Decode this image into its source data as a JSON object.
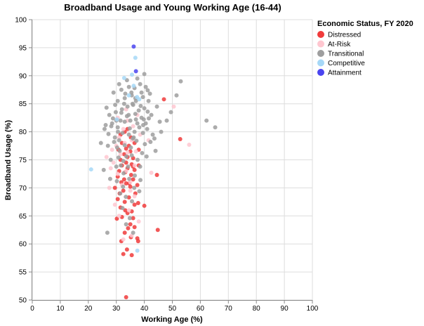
{
  "chart_data": {
    "type": "scatter",
    "title": "Broadband Usage and Young Working Age (16-44)",
    "xlabel": "Working Age (%)",
    "ylabel": "Broadband Usage (%)",
    "xlim": [
      0,
      100
    ],
    "ylim": [
      50,
      100
    ],
    "x_ticks": [
      0,
      10,
      20,
      30,
      40,
      50,
      60,
      70,
      80,
      90,
      100
    ],
    "y_ticks": [
      50,
      55,
      60,
      65,
      70,
      75,
      80,
      85,
      90,
      95,
      100
    ],
    "grid": true,
    "legend": {
      "title": "Economic Status, FY 2020",
      "placement": "right"
    },
    "series": [
      {
        "name": "Distressed",
        "color": "#f03b3b",
        "points": [
          [
            33.5,
            50.5
          ],
          [
            32.5,
            58.2
          ],
          [
            35.5,
            58.0
          ],
          [
            33.8,
            59.0
          ],
          [
            31.8,
            60.5
          ],
          [
            37.5,
            61.0
          ],
          [
            37.8,
            60.5
          ],
          [
            35.2,
            61.2
          ],
          [
            33.0,
            62.0
          ],
          [
            34.2,
            62.8
          ],
          [
            36.5,
            63.0
          ],
          [
            44.8,
            62.5
          ],
          [
            35.0,
            63.5
          ],
          [
            30.2,
            64.5
          ],
          [
            32.0,
            64.8
          ],
          [
            36.0,
            64.6
          ],
          [
            34.0,
            65.5
          ],
          [
            33.2,
            66.0
          ],
          [
            35.5,
            65.8
          ],
          [
            31.5,
            66.5
          ],
          [
            36.5,
            67.0
          ],
          [
            40.0,
            66.8
          ],
          [
            33.0,
            67.5
          ],
          [
            37.8,
            67.3
          ],
          [
            30.5,
            68.0
          ],
          [
            34.5,
            68.3
          ],
          [
            31.2,
            69.0
          ],
          [
            36.8,
            69.0
          ],
          [
            32.5,
            69.5
          ],
          [
            29.5,
            70.0
          ],
          [
            35.0,
            70.2
          ],
          [
            33.5,
            70.8
          ],
          [
            34.6,
            70.8
          ],
          [
            37.5,
            70.5
          ],
          [
            31.8,
            71.0
          ],
          [
            32.8,
            71.5
          ],
          [
            36.0,
            71.5
          ],
          [
            30.5,
            72.0
          ],
          [
            35.3,
            72.3
          ],
          [
            44.5,
            72.3
          ],
          [
            33.2,
            72.8
          ],
          [
            31.0,
            73.0
          ],
          [
            34.0,
            73.5
          ],
          [
            36.5,
            73.2
          ],
          [
            32.0,
            74.0
          ],
          [
            33.5,
            74.5
          ],
          [
            35.5,
            74.2
          ],
          [
            38.0,
            74.0
          ],
          [
            31.5,
            75.0
          ],
          [
            34.0,
            75.5
          ],
          [
            36.0,
            75.3
          ],
          [
            32.8,
            76.0
          ],
          [
            35.0,
            76.5
          ],
          [
            30.8,
            76.8
          ],
          [
            33.5,
            77.0
          ],
          [
            34.5,
            77.5
          ],
          [
            32.0,
            78.0
          ],
          [
            36.5,
            78.0
          ],
          [
            38.0,
            76.8
          ],
          [
            35.2,
            79.0
          ],
          [
            33.0,
            80.0
          ],
          [
            52.8,
            78.7
          ],
          [
            47.0,
            85.8
          ],
          [
            34.0,
            80.5
          ],
          [
            31.5,
            79.5
          ],
          [
            36.0,
            73.8
          ]
        ]
      },
      {
        "name": "At-Risk",
        "color": "#ffc7d0",
        "points": [
          [
            32.5,
            60.8
          ],
          [
            35.5,
            61.5
          ],
          [
            38.0,
            64.0
          ],
          [
            31.0,
            65.0
          ],
          [
            34.5,
            66.0
          ],
          [
            29.5,
            67.0
          ],
          [
            36.5,
            68.5
          ],
          [
            27.5,
            70.0
          ],
          [
            32.0,
            70.5
          ],
          [
            35.0,
            71.0
          ],
          [
            30.5,
            72.5
          ],
          [
            42.5,
            72.7
          ],
          [
            33.5,
            73.0
          ],
          [
            29.0,
            74.5
          ],
          [
            36.5,
            74.0
          ],
          [
            26.5,
            75.5
          ],
          [
            31.5,
            76.0
          ],
          [
            34.0,
            76.3
          ],
          [
            28.5,
            76.8
          ],
          [
            37.0,
            76.5
          ],
          [
            30.0,
            77.5
          ],
          [
            56.0,
            77.7
          ],
          [
            33.0,
            78.0
          ],
          [
            35.5,
            78.5
          ],
          [
            31.0,
            79.0
          ],
          [
            38.5,
            79.5
          ],
          [
            32.5,
            80.5
          ],
          [
            36.0,
            81.0
          ],
          [
            34.0,
            82.0
          ],
          [
            30.5,
            82.5
          ],
          [
            37.5,
            83.0
          ],
          [
            50.5,
            84.5
          ],
          [
            33.5,
            84.0
          ],
          [
            41.5,
            78.5
          ],
          [
            35.0,
            69.5
          ],
          [
            28.0,
            73.5
          ]
        ]
      },
      {
        "name": "Transitional",
        "color": "#9e9e9e",
        "points": [
          [
            26.8,
            62.0
          ],
          [
            33.5,
            63.5
          ],
          [
            25.5,
            73.2
          ],
          [
            28.0,
            75.0
          ],
          [
            30.0,
            73.8
          ],
          [
            32.5,
            74.8
          ],
          [
            35.5,
            75.8
          ],
          [
            38.5,
            73.8
          ],
          [
            24.5,
            78.0
          ],
          [
            27.0,
            77.5
          ],
          [
            29.5,
            79.0
          ],
          [
            31.0,
            78.5
          ],
          [
            34.5,
            79.5
          ],
          [
            36.5,
            80.0
          ],
          [
            39.5,
            79.8
          ],
          [
            41.0,
            80.5
          ],
          [
            43.0,
            79.5
          ],
          [
            25.8,
            80.5
          ],
          [
            28.5,
            81.5
          ],
          [
            30.5,
            80.8
          ],
          [
            33.0,
            81.8
          ],
          [
            35.0,
            82.0
          ],
          [
            37.5,
            81.5
          ],
          [
            39.0,
            82.5
          ],
          [
            40.5,
            81.5
          ],
          [
            42.5,
            83.0
          ],
          [
            27.5,
            83.0
          ],
          [
            29.8,
            83.5
          ],
          [
            32.0,
            84.0
          ],
          [
            34.0,
            84.5
          ],
          [
            36.0,
            84.8
          ],
          [
            38.0,
            83.8
          ],
          [
            40.0,
            84.2
          ],
          [
            44.5,
            84.5
          ],
          [
            49.5,
            83.5
          ],
          [
            26.5,
            84.3
          ],
          [
            30.5,
            85.5
          ],
          [
            33.0,
            86.0
          ],
          [
            35.5,
            86.5
          ],
          [
            37.0,
            85.5
          ],
          [
            39.5,
            86.2
          ],
          [
            41.5,
            85.5
          ],
          [
            51.5,
            86.5
          ],
          [
            29.0,
            87.0
          ],
          [
            31.8,
            87.5
          ],
          [
            34.5,
            88.0
          ],
          [
            36.5,
            87.8
          ],
          [
            38.5,
            88.5
          ],
          [
            40.5,
            88.0
          ],
          [
            53.0,
            89.0
          ],
          [
            31.0,
            88.5
          ],
          [
            33.8,
            89.2
          ],
          [
            37.5,
            89.5
          ],
          [
            40.0,
            90.3
          ],
          [
            42.0,
            86.8
          ],
          [
            62.2,
            82.0
          ],
          [
            65.3,
            80.8
          ],
          [
            31.5,
            82.0
          ],
          [
            33.8,
            82.8
          ],
          [
            36.8,
            83.2
          ],
          [
            38.7,
            84.6
          ],
          [
            41.2,
            83.6
          ],
          [
            28.2,
            81.0
          ],
          [
            30.0,
            82.0
          ],
          [
            32.2,
            79.8
          ],
          [
            34.8,
            80.6
          ],
          [
            36.2,
            79.0
          ],
          [
            38.2,
            80.8
          ],
          [
            40.2,
            77.8
          ],
          [
            45.5,
            81.8
          ],
          [
            29.2,
            78.2
          ],
          [
            31.2,
            76.6
          ],
          [
            33.0,
            77.6
          ],
          [
            35.2,
            77.2
          ],
          [
            37.2,
            78.4
          ],
          [
            39.2,
            76.2
          ],
          [
            30.8,
            75.4
          ],
          [
            32.6,
            72.6
          ],
          [
            34.6,
            71.6
          ],
          [
            36.6,
            72.2
          ],
          [
            38.6,
            71.4
          ],
          [
            31.4,
            69.0
          ],
          [
            33.4,
            68.4
          ],
          [
            35.6,
            67.6
          ],
          [
            32.2,
            66.4
          ],
          [
            34.8,
            64.6
          ],
          [
            36.0,
            62.0
          ],
          [
            48.0,
            82.0
          ],
          [
            46.0,
            80.0
          ],
          [
            27.2,
            79.6
          ],
          [
            29.6,
            84.8
          ],
          [
            35.8,
            85.0
          ],
          [
            39.8,
            82.2
          ],
          [
            42.2,
            78.2
          ],
          [
            44.0,
            76.6
          ],
          [
            40.8,
            75.6
          ],
          [
            37.6,
            75.0
          ],
          [
            33.6,
            75.6
          ],
          [
            31.6,
            74.0
          ],
          [
            34.2,
            73.8
          ],
          [
            32.4,
            70.2
          ],
          [
            36.4,
            70.0
          ],
          [
            38.2,
            69.4
          ],
          [
            30.2,
            71.2
          ],
          [
            27.8,
            71.6
          ],
          [
            35.4,
            87.0
          ],
          [
            33.2,
            86.8
          ],
          [
            32.8,
            85.0
          ],
          [
            36.8,
            86.0
          ],
          [
            41.2,
            87.4
          ],
          [
            39.0,
            87.0
          ],
          [
            43.6,
            78.8
          ],
          [
            30.6,
            80.0
          ],
          [
            28.8,
            82.4
          ],
          [
            26.2,
            81.2
          ],
          [
            31.8,
            83.4
          ],
          [
            34.4,
            83.0
          ],
          [
            37.0,
            82.2
          ],
          [
            39.6,
            81.2
          ],
          [
            41.6,
            82.4
          ],
          [
            30.3,
            77.2
          ],
          [
            35.9,
            78.8
          ]
        ]
      },
      {
        "name": "Competitive",
        "color": "#a6d8f7",
        "points": [
          [
            21.0,
            73.3
          ],
          [
            37.5,
            58.8
          ],
          [
            34.5,
            86.5
          ],
          [
            36.2,
            88.2
          ],
          [
            37.4,
            86.2
          ],
          [
            36.8,
            93.2
          ],
          [
            32.8,
            89.6
          ],
          [
            35.6,
            90.2
          ],
          [
            30.2,
            82.2
          ],
          [
            38.2,
            85.8
          ]
        ]
      },
      {
        "name": "Attainment",
        "color": "#4a44f0",
        "points": [
          [
            36.2,
            95.2
          ],
          [
            37.0,
            90.8
          ]
        ]
      }
    ]
  }
}
